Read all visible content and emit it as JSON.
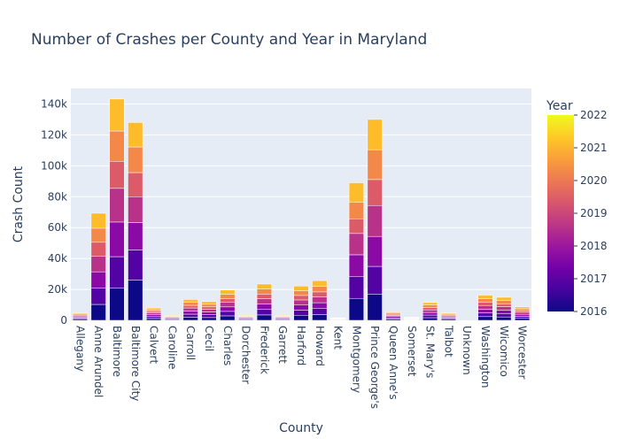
{
  "chart_data": {
    "type": "bar",
    "barmode": "stack",
    "title": "Number of Crashes per County and Year in Maryland",
    "xlabel": "County",
    "ylabel": "Crash Count",
    "ylim": [
      0,
      150000
    ],
    "yticks": [
      0,
      20000,
      40000,
      60000,
      80000,
      100000,
      120000,
      140000
    ],
    "ytick_labels": [
      "0",
      "20k",
      "40k",
      "60k",
      "80k",
      "100k",
      "120k",
      "140k"
    ],
    "grid": true,
    "colorbar": {
      "title": "Year",
      "min": 2016,
      "max": 2022,
      "tick_labels": [
        "2016",
        "2017",
        "2018",
        "2019",
        "2020",
        "2021",
        "2022"
      ],
      "placement": "right"
    },
    "categories": [
      "Allegany",
      "Anne Arundel",
      "Baltimore",
      "Baltimore City",
      "Calvert",
      "Caroline",
      "Carroll",
      "Cecil",
      "Charles",
      "Dorchester",
      "Frederick",
      "Garrett",
      "Harford",
      "Howard",
      "Kent",
      "Montgomery",
      "Prince George's",
      "Queen Anne's",
      "Somerset",
      "St. Mary's",
      "Talbot",
      "Unknown",
      "Washington",
      "Wicomico",
      "Worcester"
    ],
    "series": [
      {
        "name": "2016",
        "color": "#0d0887",
        "values": [
          700,
          10300,
          20800,
          26000,
          1200,
          500,
          2000,
          1800,
          2900,
          500,
          3500,
          500,
          3300,
          3800,
          250,
          14200,
          17000,
          800,
          300,
          1700,
          700,
          0,
          2400,
          2200,
          1300
        ]
      },
      {
        "name": "2017",
        "color": "#5302a3",
        "values": [
          700,
          10500,
          20400,
          19500,
          1200,
          500,
          2000,
          1800,
          2900,
          500,
          3500,
          500,
          3300,
          3800,
          250,
          14000,
          17900,
          800,
          300,
          1700,
          700,
          0,
          2400,
          2200,
          1300
        ]
      },
      {
        "name": "2018",
        "color": "#8b0aa5",
        "values": [
          700,
          10600,
          22400,
          17700,
          1200,
          500,
          2000,
          1800,
          2900,
          500,
          3500,
          500,
          3300,
          3800,
          250,
          14200,
          19400,
          800,
          300,
          1700,
          700,
          0,
          2400,
          2200,
          1300
        ]
      },
      {
        "name": "2019",
        "color": "#b83289",
        "values": [
          700,
          10200,
          21800,
          16800,
          1200,
          500,
          2000,
          1800,
          2900,
          500,
          3500,
          500,
          3300,
          3800,
          250,
          13800,
          20000,
          800,
          300,
          1700,
          700,
          0,
          2400,
          2200,
          1300
        ]
      },
      {
        "name": "2020",
        "color": "#db5c68",
        "values": [
          600,
          8900,
          17500,
          15600,
          1000,
          400,
          1700,
          1500,
          2500,
          400,
          3000,
          400,
          2900,
          3200,
          200,
          9500,
          16800,
          700,
          250,
          1500,
          600,
          0,
          2100,
          1900,
          1100
        ]
      },
      {
        "name": "2021",
        "color": "#f48849",
        "values": [
          700,
          9100,
          19600,
          16600,
          1100,
          450,
          1900,
          1700,
          2700,
          450,
          3200,
          450,
          3000,
          3600,
          230,
          10600,
          19300,
          750,
          280,
          1600,
          650,
          0,
          2300,
          2100,
          1200
        ]
      },
      {
        "name": "2022",
        "color": "#febc2a",
        "values": [
          700,
          9700,
          20700,
          15800,
          1100,
          450,
          1900,
          1700,
          2800,
          450,
          3300,
          450,
          3100,
          3700,
          230,
          12700,
          19600,
          750,
          280,
          1600,
          650,
          0,
          2300,
          2100,
          1200
        ]
      }
    ],
    "top_color": "#f0f921"
  }
}
